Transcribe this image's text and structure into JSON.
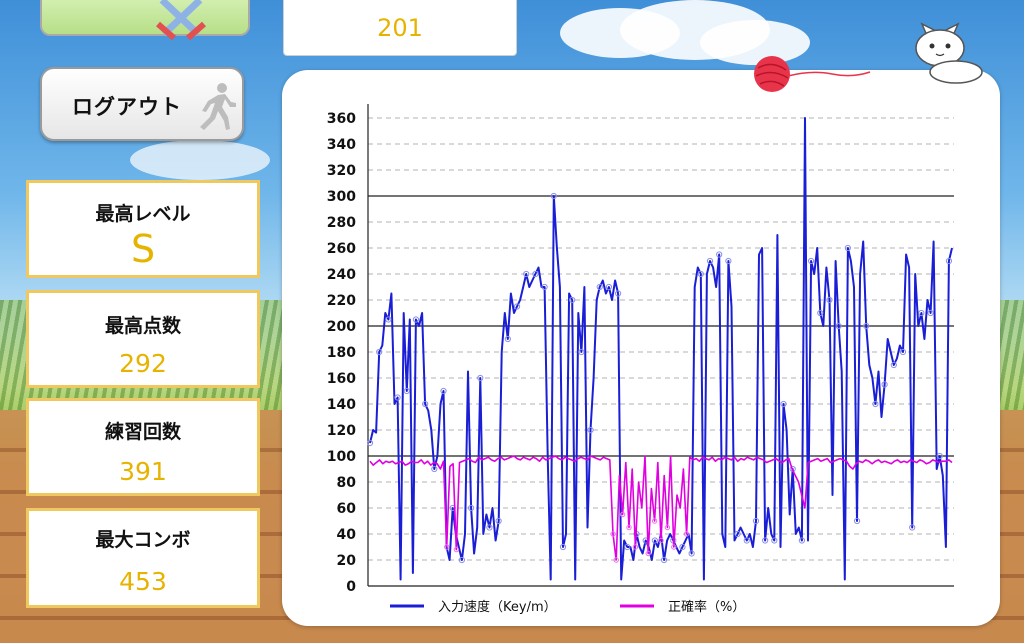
{
  "header": {
    "counter_value": "201"
  },
  "logout": {
    "label": "ログアウト"
  },
  "stats": [
    {
      "label": "最高レベル",
      "value": "S"
    },
    {
      "label": "最高点数",
      "value": "292"
    },
    {
      "label": "練習回数",
      "value": "391"
    },
    {
      "label": "最大コンボ",
      "value": "453"
    }
  ],
  "colors": {
    "speed": "#1a1fd6",
    "accuracy": "#e000e0",
    "value_text": "#e6b400",
    "card_border": "#f0c860"
  },
  "icons": {
    "ribbon": "crossed-swords-icon",
    "logout": "running-man-icon",
    "panel_left": "yarn-ball-icon",
    "panel_right": "cat-icon"
  },
  "chart_data": {
    "type": "line",
    "title": "",
    "xlabel": "",
    "ylabel": "",
    "ylim": [
      0,
      360
    ],
    "yticks": [
      "0",
      "20",
      "40",
      "60",
      "80",
      "100",
      "120",
      "140",
      "160",
      "180",
      "200",
      "220",
      "240",
      "260",
      "280",
      "300",
      "320",
      "340",
      "360"
    ],
    "major_grid": [
      100,
      200,
      300
    ],
    "grid": true,
    "legend_position": "bottom",
    "series": [
      {
        "name": "入力速度（Key/m）",
        "color": "#1a1fd6",
        "values": [
          110,
          120,
          118,
          180,
          185,
          210,
          205,
          225,
          140,
          145,
          5,
          210,
          150,
          205,
          10,
          205,
          200,
          210,
          140,
          135,
          120,
          90,
          100,
          140,
          150,
          30,
          20,
          60,
          40,
          30,
          20,
          40,
          165,
          60,
          25,
          45,
          160,
          40,
          55,
          45,
          60,
          35,
          50,
          180,
          210,
          190,
          225,
          210,
          215,
          220,
          230,
          240,
          230,
          235,
          240,
          245,
          230,
          230,
          100,
          5,
          300,
          260,
          230,
          30,
          40,
          225,
          220,
          5,
          210,
          180,
          230,
          45,
          120,
          160,
          220,
          230,
          235,
          225,
          230,
          220,
          235,
          225,
          5,
          35,
          30,
          30,
          20,
          40,
          30,
          25,
          35,
          30,
          20,
          35,
          30,
          40,
          20,
          35,
          40,
          35,
          30,
          25,
          30,
          35,
          40,
          25,
          230,
          245,
          240,
          5,
          240,
          250,
          245,
          230,
          255,
          40,
          30,
          250,
          215,
          35,
          40,
          45,
          40,
          35,
          40,
          30,
          50,
          255,
          260,
          35,
          60,
          40,
          35,
          270,
          30,
          140,
          120,
          55,
          90,
          40,
          45,
          35,
          360,
          35,
          250,
          240,
          260,
          210,
          200,
          245,
          220,
          70,
          250,
          200,
          165,
          5,
          260,
          250,
          230,
          50,
          240,
          265,
          200,
          170,
          160,
          140,
          165,
          130,
          155,
          190,
          180,
          170,
          175,
          185,
          180,
          255,
          245,
          45,
          240,
          200,
          210,
          190,
          220,
          210,
          265,
          90,
          100,
          85,
          30,
          250,
          260
        ]
      },
      {
        "name": "正確率（%）",
        "color": "#e000e0",
        "values": [
          96,
          93,
          95,
          97,
          94,
          96,
          95,
          96,
          94,
          95,
          96,
          93,
          94,
          96,
          95,
          95,
          97,
          94,
          96,
          93,
          95,
          94,
          90,
          96,
          30,
          92,
          94,
          28,
          95,
          96,
          97,
          98,
          96,
          95,
          99,
          97,
          98,
          99,
          97,
          96,
          98,
          99,
          97,
          98,
          99,
          100,
          98,
          97,
          99,
          98,
          97,
          99,
          98,
          96,
          99,
          97,
          98,
          99,
          100,
          98,
          97,
          99,
          98,
          97,
          96,
          98,
          99,
          98,
          97,
          100,
          99,
          98,
          97,
          99,
          98,
          97,
          40,
          20,
          85,
          55,
          95,
          45,
          90,
          30,
          80,
          60,
          100,
          25,
          75,
          50,
          95,
          35,
          85,
          45,
          100,
          30,
          70,
          60,
          90,
          40,
          99,
          97,
          98,
          96,
          99,
          98,
          97,
          99,
          96,
          98,
          97,
          99,
          98,
          97,
          99,
          96,
          98,
          97,
          99,
          98,
          97,
          99,
          98,
          97,
          95,
          96,
          97,
          98,
          96,
          95,
          97,
          98,
          90,
          85,
          80,
          70,
          60,
          95,
          96,
          97,
          98,
          96,
          97,
          98,
          95,
          96,
          97,
          98,
          97,
          96,
          92,
          90,
          94,
          96,
          95,
          97,
          96,
          94,
          96,
          97,
          95,
          96,
          95,
          94,
          96,
          97,
          95,
          96,
          95,
          97,
          96,
          95,
          97,
          96,
          94,
          95,
          97,
          96,
          95,
          96,
          96,
          97,
          95
        ]
      }
    ]
  }
}
